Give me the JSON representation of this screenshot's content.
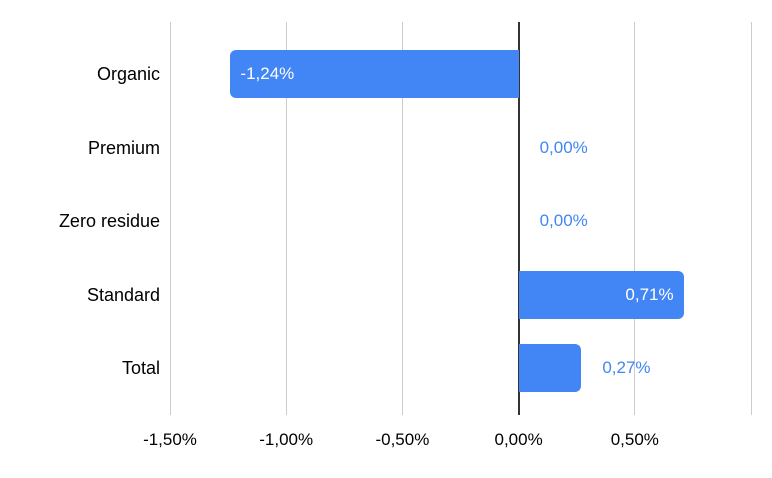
{
  "chart_data": {
    "type": "bar",
    "orientation": "horizontal",
    "categories": [
      "Organic",
      "Premium",
      "Zero residue",
      "Standard",
      "Total"
    ],
    "values": [
      -1.24,
      0.0,
      0.0,
      0.71,
      0.27
    ],
    "value_labels": [
      "-1,24%",
      "0,00%",
      "0,00%",
      "0,71%",
      "0,27%"
    ],
    "label_inside": [
      true,
      false,
      false,
      true,
      false
    ],
    "x_ticks": [
      {
        "value": -1.5,
        "label": "-1,50%"
      },
      {
        "value": -1.0,
        "label": "-1,00%"
      },
      {
        "value": -0.5,
        "label": "-0,50%"
      },
      {
        "value": 0.0,
        "label": "0,00%"
      },
      {
        "value": 0.5,
        "label": "0,50%"
      },
      {
        "value": 1.0,
        "label": ""
      }
    ],
    "xlim": [
      -1.5,
      1.0
    ],
    "grid": true,
    "legend": "none",
    "title": "",
    "colors": {
      "bar": "#4285f4",
      "label_inside": "#ffffff",
      "label_outside": "#4285f4",
      "axis_text": "#000000",
      "gridline": "#cccccc",
      "zero_line": "#333333",
      "background": "#ffffff"
    }
  }
}
